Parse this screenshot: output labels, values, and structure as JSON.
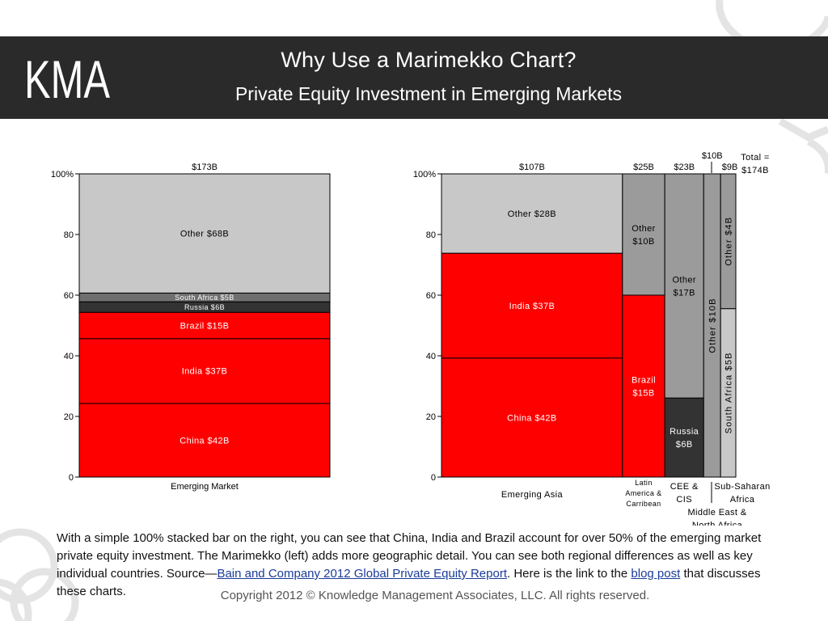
{
  "header": {
    "logo_text": "KMA",
    "title": "Why Use a Marimekko Chart?",
    "subtitle": "Private Equity Investment in Emerging Markets"
  },
  "colors": {
    "header_bg": "#2a2a2a",
    "red": "#ff0000",
    "light_gray": "#c8c8c8",
    "mid_gray": "#9b9b9b",
    "dark_gray": "#6f6f6f",
    "near_black": "#333333"
  },
  "chart_data": [
    {
      "type": "bar",
      "subtype": "100% stacked bar",
      "ylim": [
        0,
        100
      ],
      "yticks": [
        0,
        20,
        40,
        60,
        80,
        100
      ],
      "ytick_labels": [
        "0",
        "20",
        "40",
        "60",
        "80",
        "100%"
      ],
      "columns": [
        {
          "category": "Emerging Market",
          "total_label": "$173B",
          "total": 173,
          "segments": [
            {
              "label": "China $42B",
              "value": 42,
              "color": "#ff0000"
            },
            {
              "label": "India $37B",
              "value": 37,
              "color": "#ff0000"
            },
            {
              "label": "Brazil $15B",
              "value": 15,
              "color": "#ff0000"
            },
            {
              "label": "Russia $6B",
              "value": 6,
              "color": "#333333"
            },
            {
              "label": "South Africa $5B",
              "value": 5,
              "color": "#6f6f6f"
            },
            {
              "label": "Other $68B",
              "value": 68,
              "color": "#c8c8c8"
            }
          ]
        }
      ]
    },
    {
      "type": "bar",
      "subtype": "marimekko",
      "ylim": [
        0,
        100
      ],
      "yticks": [
        0,
        20,
        40,
        60,
        80,
        100
      ],
      "ytick_labels": [
        "0",
        "20",
        "40",
        "60",
        "80",
        "100%"
      ],
      "total_label": "Total = $174B",
      "columns": [
        {
          "category": "Emerging Asia",
          "total_label": "$107B",
          "total": 107,
          "segments": [
            {
              "label": "China $42B",
              "value": 42,
              "color": "#ff0000"
            },
            {
              "label": "India $37B",
              "value": 37,
              "color": "#ff0000"
            },
            {
              "label": "Other $28B",
              "value": 28,
              "color": "#c8c8c8"
            }
          ]
        },
        {
          "category": "Latin America & Carribean",
          "total_label": "$25B",
          "total": 25,
          "segments": [
            {
              "label": "Brazil $15B",
              "value": 15,
              "color": "#ff0000"
            },
            {
              "label": "Other $10B",
              "value": 10,
              "color": "#9b9b9b"
            }
          ]
        },
        {
          "category": "CEE & CIS",
          "total_label": "$23B",
          "total": 23,
          "segments": [
            {
              "label": "Russia $6B",
              "value": 6,
              "color": "#333333"
            },
            {
              "label": "Other $17B",
              "value": 17,
              "color": "#9b9b9b"
            }
          ]
        },
        {
          "category": "Middle East & North Africa",
          "total_label": "$10B",
          "total": 10,
          "segments": [
            {
              "label": "Other $10B",
              "value": 10,
              "color": "#9b9b9b"
            }
          ]
        },
        {
          "category": "Sub-Saharan Africa",
          "total_label": "$9B",
          "total": 9,
          "segments": [
            {
              "label": "South Africa $5B",
              "value": 5,
              "color": "#c8c8c8"
            },
            {
              "label": "Other $4B",
              "value": 4,
              "color": "#9b9b9b"
            }
          ]
        }
      ]
    }
  ],
  "caption": {
    "part1": "With a simple 100% stacked bar on the right, you can see that China, India and Brazil account for over 50% of the emerging market private equity investment.  The Marimekko (left) adds more geographic detail.  You can see both regional differences as well as key individual countries.  Source—",
    "source_link": "Bain and Company 2012 Global Private Equity Report",
    "part2": ".  Here is the link to the ",
    "blog_link": "blog post",
    "part3": " that discusses these charts."
  },
  "copyright": "Copyright 2012 © Knowledge Management Associates, LLC.  All rights reserved."
}
